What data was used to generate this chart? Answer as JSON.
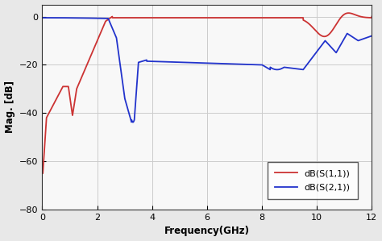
{
  "title": "",
  "xlabel": "Frequency(GHz)",
  "ylabel": "Mag. [dB]",
  "xlim": [
    0,
    12
  ],
  "ylim": [
    -80,
    5
  ],
  "yticks": [
    0,
    -20,
    -40,
    -60,
    -80
  ],
  "xticks": [
    0,
    2,
    4,
    6,
    8,
    10,
    12
  ],
  "legend": [
    "dB(S(1,1))",
    "dB(S(2,1))"
  ],
  "s11_color": "#cc3333",
  "s21_color": "#2233cc",
  "background_color": "#f8f8f8",
  "grid_color": "#cccccc",
  "fig_bg": "#e8e8e8"
}
